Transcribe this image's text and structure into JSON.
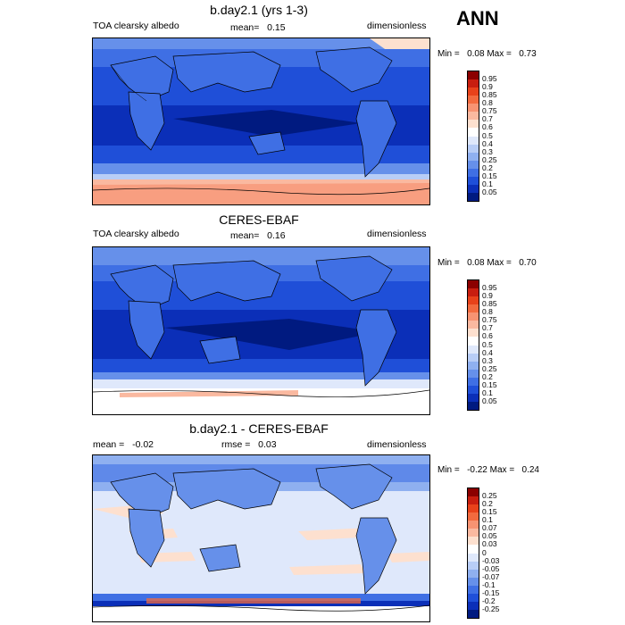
{
  "season": "ANN",
  "panels": [
    {
      "id": "model",
      "title": "b.day2.1 (yrs 1-3)",
      "left_label": "TOA clearsky albedo",
      "stat_label": "mean=",
      "stat_value": "0.15",
      "units": "dimensionless",
      "min_label": "Min =",
      "min_value": "0.08",
      "max_label": "Max =",
      "max_value": "0.73",
      "colorbar": {
        "levels": [
          "0.95",
          "0.9",
          "0.85",
          "0.8",
          "0.75",
          "0.7",
          "0.6",
          "0.5",
          "0.4",
          "0.3",
          "0.25",
          "0.2",
          "0.15",
          "0.1",
          "0.05"
        ],
        "colors": [
          "#8b0000",
          "#c81e0f",
          "#e8421a",
          "#f26a3e",
          "#f79372",
          "#fab9a0",
          "#fde0cf",
          "#ffffff",
          "#dfe8fb",
          "#b8cdf6",
          "#8fb0f0",
          "#6690ea",
          "#3f6fe4",
          "#1f4fd8",
          "#0b2fb8",
          "#001a80"
        ]
      }
    },
    {
      "id": "obs",
      "title": "CERES-EBAF",
      "left_label": "TOA clearsky albedo",
      "stat_label": "mean=",
      "stat_value": "0.16",
      "units": "dimensionless",
      "min_label": "Min =",
      "min_value": "0.08",
      "max_label": "Max =",
      "max_value": "0.70",
      "colorbar": {
        "levels": [
          "0.95",
          "0.9",
          "0.85",
          "0.8",
          "0.75",
          "0.7",
          "0.6",
          "0.5",
          "0.4",
          "0.3",
          "0.25",
          "0.2",
          "0.15",
          "0.1",
          "0.05"
        ],
        "colors": [
          "#8b0000",
          "#c81e0f",
          "#e8421a",
          "#f26a3e",
          "#f79372",
          "#fab9a0",
          "#fde0cf",
          "#ffffff",
          "#dfe8fb",
          "#b8cdf6",
          "#8fb0f0",
          "#6690ea",
          "#3f6fe4",
          "#1f4fd8",
          "#0b2fb8",
          "#001a80"
        ]
      }
    },
    {
      "id": "diff",
      "title": "b.day2.1 - CERES-EBAF",
      "left_label": "mean =",
      "left_value": "-0.02",
      "stat_label": "rmse =",
      "stat_value": "0.03",
      "units": "dimensionless",
      "min_label": "Min =",
      "min_value": "-0.22",
      "max_label": "Max =",
      "max_value": "0.24",
      "colorbar": {
        "levels": [
          "0.25",
          "0.2",
          "0.15",
          "0.1",
          "0.07",
          "0.05",
          "0.03",
          "0",
          "-0.03",
          "-0.05",
          "-0.07",
          "-0.1",
          "-0.15",
          "-0.2",
          "-0.25"
        ],
        "colors": [
          "#8b0000",
          "#c81e0f",
          "#e8421a",
          "#f26a3e",
          "#f79372",
          "#fab9a0",
          "#fde0cf",
          "#ffffff",
          "#dfe8fb",
          "#b8cdf6",
          "#8fb0f0",
          "#6690ea",
          "#3f6fe4",
          "#1f4fd8",
          "#0b2fb8",
          "#001a80"
        ]
      }
    }
  ]
}
